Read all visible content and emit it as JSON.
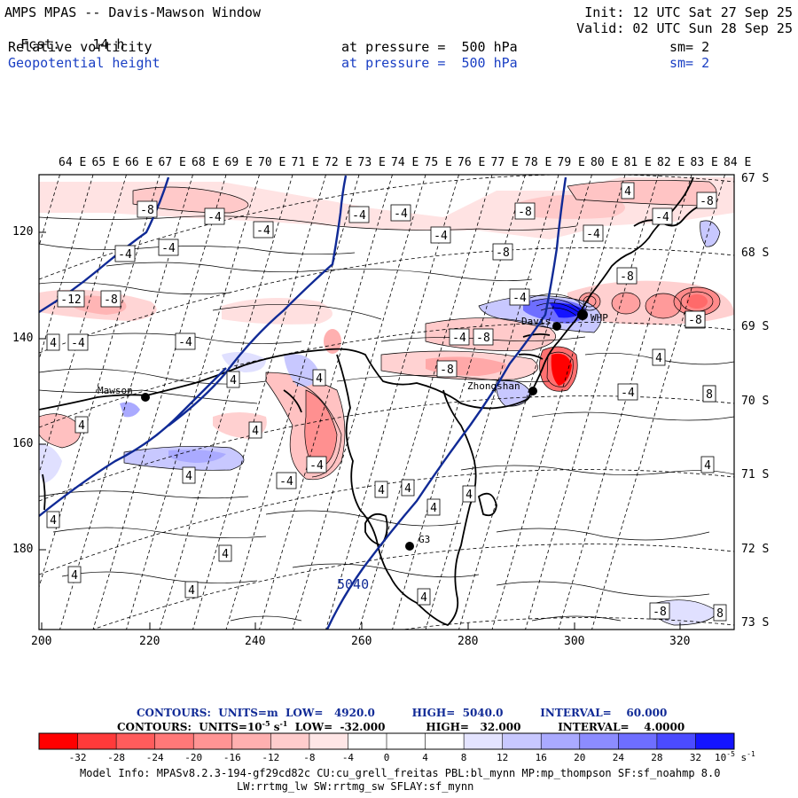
{
  "header": {
    "title": "AMPS MPAS -- Davis-Mawson Window",
    "fcst_label": "Fcst:",
    "fcst_value": "14 h",
    "init": "Init: 12 UTC Sat 27 Sep 25",
    "valid": "Valid: 02 UTC Sun 28 Sep 25",
    "field1_name": "Relative vorticity",
    "field1_level": "at pressure =  500 hPa",
    "field1_sm": "sm= 2",
    "field2_name": "Geopotential height",
    "field2_level": "at pressure =  500 hPa",
    "field2_sm": "sm= 2"
  },
  "colors": {
    "height_contour": "#102a96",
    "header_blue": "#1a3fc4",
    "coast": "#000000"
  },
  "top_lon_labels": [
    "64 E",
    "65 E",
    "66 E",
    "67 E",
    "68 E",
    "69 E",
    "70 E",
    "71 E",
    "72 E",
    "73 E",
    "74 E",
    "75 E",
    "76 E",
    "77 E",
    "78 E",
    "79 E",
    "80 E",
    "81 E",
    "82 E",
    "83 E",
    "84 E"
  ],
  "left_y_ticks": [
    "120",
    "140",
    "160",
    "180"
  ],
  "bottom_x_ticks": [
    "200",
    "220",
    "240",
    "260",
    "280",
    "300",
    "320"
  ],
  "right_lat_labels": [
    "67 S",
    "68 S",
    "69 S",
    "70 S",
    "71 S",
    "72 S",
    "73 S"
  ],
  "stations": {
    "mawson": "Mawson",
    "davis": "Davis",
    "zhongshan": "Zhongshan",
    "g3": "G3",
    "dome": "WHP"
  },
  "contour_labels": {
    "height_5040": "5040",
    "vorticity": [
      "-8",
      "-4",
      "-4",
      "-4",
      "-4",
      "-4",
      "-8",
      "-4",
      "-4",
      "-8",
      "-4",
      "-8",
      "-4",
      "-12",
      "-8",
      "-8",
      "4",
      "-4",
      "-4",
      "-8",
      "-8",
      "-4",
      "4",
      "-4",
      "4",
      "4",
      "4",
      "4",
      "-4",
      "-4",
      "-8",
      "4",
      "8",
      "-4",
      "4",
      "4",
      "4",
      "-8",
      "4",
      "4",
      "4",
      "4",
      "4",
      "4",
      "8",
      "4",
      "4",
      "-8",
      "8"
    ]
  },
  "legend": {
    "height_contours": "CONTOURS:  UNITS=m  LOW=   4920.0          HIGH=  5040.0          INTERVAL=    60.000",
    "vort_contours_a": "CONTOURS:  UNITS=10",
    "vort_contours_b": "s",
    "vort_contours_c": "  LOW=  -32.000           HIGH=   32.000          INTERVAL=    4.0000",
    "sup_minus5": "-5",
    "sup_minus1": "-1",
    "bar_values": [
      "-32",
      "-28",
      "-24",
      "-20",
      "-16",
      "-12",
      "-8",
      "-4",
      "0",
      "4",
      "8",
      "12",
      "16",
      "20",
      "24",
      "28",
      "32"
    ],
    "units": "10",
    "units_exp": "-5",
    "units_s": "s",
    "units_s_exp": "-1",
    "bar_colors": [
      "#ff0000",
      "#ff3a3a",
      "#ff5c5c",
      "#ff7878",
      "#ff9494",
      "#ffb0b0",
      "#ffcccc",
      "#ffe6e6",
      "#ffffff",
      "#ffffff",
      "#e4e4ff",
      "#c8c8ff",
      "#aaaaff",
      "#8c8cff",
      "#6e6eff",
      "#4b4bff",
      "#1414ff"
    ]
  },
  "model_info_1": "Model Info: MPASv8.2.3-194-gf29cd82c CU:cu_grell_freitas PBL:bl_mynn MP:mp_thompson SF:sf_noahmp 8.0",
  "model_info_2": "LW:rrtmg_lw SW:rrtmg_sw SFLAY:sf_mynn"
}
